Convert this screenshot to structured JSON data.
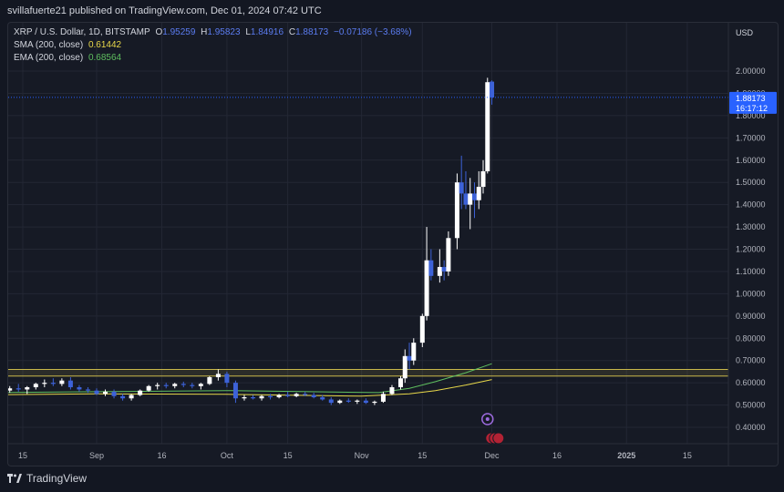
{
  "header": {
    "publish_line": "svillafuerte21 published on TradingView.com, Dec 01, 2024 07:42 UTC"
  },
  "legend": {
    "symbol": "XRP / U.S. Dollar, 1D, BITSTAMP",
    "o_label": "O",
    "o_value": "1.95259",
    "h_label": "H",
    "h_value": "1.95823",
    "l_label": "L",
    "l_value": "1.84916",
    "c_label": "C",
    "c_value": "1.88173",
    "change": "−0.07186 (−3.68%)",
    "sma_label": "SMA (200, close)",
    "sma_value": "0.61442",
    "ema_label": "EMA (200, close)",
    "ema_value": "0.68564"
  },
  "footer": {
    "brand": "TradingView"
  },
  "colors": {
    "up": "#ffffff",
    "down": "#3d62d8",
    "sma": "#e8d84a",
    "ema": "#5fbf5f",
    "zone": "#c9b84a",
    "price_tag": "#2962ff"
  },
  "icons": [
    "tradingview-logo-icon",
    "event-star-icon",
    "us-flag-icon"
  ],
  "chart_data": {
    "type": "candlestick",
    "title": "XRP / U.S. Dollar, 1D, BITSTAMP",
    "currency": "USD",
    "ylim": [
      0.34,
      2.1
    ],
    "yticks": [
      0.4,
      0.5,
      0.6,
      0.7,
      0.8,
      0.9,
      1.0,
      1.1,
      1.2,
      1.3,
      1.4,
      1.5,
      1.6,
      1.7,
      1.8,
      1.9,
      2.0
    ],
    "ytick_labels": [
      "0.40000",
      "0.50000",
      "0.60000",
      "0.70000",
      "0.80000",
      "0.90000",
      "1.00000",
      "1.10000",
      "1.20000",
      "1.30000",
      "1.40000",
      "1.50000",
      "1.60000",
      "1.70000",
      "1.80000",
      "1.90000",
      "2.00000"
    ],
    "xtick_labels": [
      {
        "label": "15",
        "date": "2024-08-15"
      },
      {
        "label": "Sep",
        "date": "2024-09-01"
      },
      {
        "label": "16",
        "date": "2024-09-16"
      },
      {
        "label": "Oct",
        "date": "2024-10-01"
      },
      {
        "label": "15",
        "date": "2024-10-15"
      },
      {
        "label": "Nov",
        "date": "2024-11-01"
      },
      {
        "label": "15",
        "date": "2024-11-15"
      },
      {
        "label": "Dec",
        "date": "2024-12-01"
      },
      {
        "label": "16",
        "date": "2024-12-16"
      },
      {
        "label": "2025",
        "date": "2025-01-01"
      },
      {
        "label": "15",
        "date": "2025-01-15"
      }
    ],
    "last_price": "1.88173",
    "countdown": "16:17:12",
    "grid": true,
    "horizontal_zone": [
      0.63,
      0.66
    ],
    "candles": [
      {
        "date": "2024-08-10",
        "o": 0.555,
        "h": 0.575,
        "l": 0.545,
        "c": 0.565
      },
      {
        "date": "2024-08-12",
        "o": 0.565,
        "h": 0.585,
        "l": 0.555,
        "c": 0.575
      },
      {
        "date": "2024-08-14",
        "o": 0.575,
        "h": 0.595,
        "l": 0.56,
        "c": 0.57
      },
      {
        "date": "2024-08-16",
        "o": 0.57,
        "h": 0.585,
        "l": 0.55,
        "c": 0.58
      },
      {
        "date": "2024-08-18",
        "o": 0.58,
        "h": 0.6,
        "l": 0.57,
        "c": 0.595
      },
      {
        "date": "2024-08-20",
        "o": 0.595,
        "h": 0.615,
        "l": 0.58,
        "c": 0.6
      },
      {
        "date": "2024-08-22",
        "o": 0.6,
        "h": 0.62,
        "l": 0.585,
        "c": 0.595
      },
      {
        "date": "2024-08-24",
        "o": 0.595,
        "h": 0.62,
        "l": 0.585,
        "c": 0.61
      },
      {
        "date": "2024-08-26",
        "o": 0.61,
        "h": 0.625,
        "l": 0.57,
        "c": 0.58
      },
      {
        "date": "2024-08-28",
        "o": 0.58,
        "h": 0.59,
        "l": 0.56,
        "c": 0.57
      },
      {
        "date": "2024-08-30",
        "o": 0.57,
        "h": 0.58,
        "l": 0.555,
        "c": 0.565
      },
      {
        "date": "2024-09-01",
        "o": 0.565,
        "h": 0.575,
        "l": 0.545,
        "c": 0.55
      },
      {
        "date": "2024-09-03",
        "o": 0.55,
        "h": 0.57,
        "l": 0.54,
        "c": 0.56
      },
      {
        "date": "2024-09-05",
        "o": 0.56,
        "h": 0.57,
        "l": 0.53,
        "c": 0.54
      },
      {
        "date": "2024-09-07",
        "o": 0.54,
        "h": 0.55,
        "l": 0.52,
        "c": 0.53
      },
      {
        "date": "2024-09-09",
        "o": 0.53,
        "h": 0.55,
        "l": 0.52,
        "c": 0.545
      },
      {
        "date": "2024-09-11",
        "o": 0.545,
        "h": 0.57,
        "l": 0.54,
        "c": 0.565
      },
      {
        "date": "2024-09-13",
        "o": 0.565,
        "h": 0.59,
        "l": 0.56,
        "c": 0.585
      },
      {
        "date": "2024-09-15",
        "o": 0.585,
        "h": 0.6,
        "l": 0.57,
        "c": 0.59
      },
      {
        "date": "2024-09-17",
        "o": 0.59,
        "h": 0.6,
        "l": 0.575,
        "c": 0.585
      },
      {
        "date": "2024-09-19",
        "o": 0.585,
        "h": 0.6,
        "l": 0.575,
        "c": 0.595
      },
      {
        "date": "2024-09-21",
        "o": 0.595,
        "h": 0.605,
        "l": 0.58,
        "c": 0.59
      },
      {
        "date": "2024-09-23",
        "o": 0.59,
        "h": 0.6,
        "l": 0.575,
        "c": 0.585
      },
      {
        "date": "2024-09-25",
        "o": 0.585,
        "h": 0.6,
        "l": 0.57,
        "c": 0.595
      },
      {
        "date": "2024-09-27",
        "o": 0.595,
        "h": 0.63,
        "l": 0.59,
        "c": 0.625
      },
      {
        "date": "2024-09-29",
        "o": 0.625,
        "h": 0.66,
        "l": 0.61,
        "c": 0.64
      },
      {
        "date": "2024-10-01",
        "o": 0.64,
        "h": 0.65,
        "l": 0.58,
        "c": 0.6
      },
      {
        "date": "2024-10-03",
        "o": 0.6,
        "h": 0.61,
        "l": 0.51,
        "c": 0.53
      },
      {
        "date": "2024-10-05",
        "o": 0.53,
        "h": 0.545,
        "l": 0.52,
        "c": 0.535
      },
      {
        "date": "2024-10-07",
        "o": 0.535,
        "h": 0.545,
        "l": 0.525,
        "c": 0.53
      },
      {
        "date": "2024-10-09",
        "o": 0.53,
        "h": 0.545,
        "l": 0.52,
        "c": 0.54
      },
      {
        "date": "2024-10-11",
        "o": 0.54,
        "h": 0.55,
        "l": 0.525,
        "c": 0.535
      },
      {
        "date": "2024-10-13",
        "o": 0.535,
        "h": 0.55,
        "l": 0.53,
        "c": 0.545
      },
      {
        "date": "2024-10-15",
        "o": 0.545,
        "h": 0.56,
        "l": 0.535,
        "c": 0.54
      },
      {
        "date": "2024-10-17",
        "o": 0.54,
        "h": 0.555,
        "l": 0.535,
        "c": 0.55
      },
      {
        "date": "2024-10-19",
        "o": 0.55,
        "h": 0.56,
        "l": 0.54,
        "c": 0.545
      },
      {
        "date": "2024-10-21",
        "o": 0.545,
        "h": 0.555,
        "l": 0.53,
        "c": 0.535
      },
      {
        "date": "2024-10-23",
        "o": 0.535,
        "h": 0.545,
        "l": 0.52,
        "c": 0.525
      },
      {
        "date": "2024-10-25",
        "o": 0.525,
        "h": 0.535,
        "l": 0.5,
        "c": 0.51
      },
      {
        "date": "2024-10-27",
        "o": 0.51,
        "h": 0.525,
        "l": 0.505,
        "c": 0.52
      },
      {
        "date": "2024-10-29",
        "o": 0.52,
        "h": 0.53,
        "l": 0.51,
        "c": 0.515
      },
      {
        "date": "2024-10-31",
        "o": 0.515,
        "h": 0.525,
        "l": 0.505,
        "c": 0.52
      },
      {
        "date": "2024-11-02",
        "o": 0.52,
        "h": 0.53,
        "l": 0.505,
        "c": 0.51
      },
      {
        "date": "2024-11-04",
        "o": 0.51,
        "h": 0.52,
        "l": 0.5,
        "c": 0.515
      },
      {
        "date": "2024-11-06",
        "o": 0.515,
        "h": 0.56,
        "l": 0.51,
        "c": 0.55
      },
      {
        "date": "2024-11-08",
        "o": 0.55,
        "h": 0.59,
        "l": 0.545,
        "c": 0.58
      },
      {
        "date": "2024-11-10",
        "o": 0.58,
        "h": 0.63,
        "l": 0.57,
        "c": 0.62
      },
      {
        "date": "2024-11-11",
        "o": 0.62,
        "h": 0.75,
        "l": 0.6,
        "c": 0.72
      },
      {
        "date": "2024-11-12",
        "o": 0.72,
        "h": 0.78,
        "l": 0.66,
        "c": 0.7
      },
      {
        "date": "2024-11-13",
        "o": 0.7,
        "h": 0.8,
        "l": 0.68,
        "c": 0.78
      },
      {
        "date": "2024-11-15",
        "o": 0.78,
        "h": 0.91,
        "l": 0.76,
        "c": 0.9
      },
      {
        "date": "2024-11-16",
        "o": 0.9,
        "h": 1.3,
        "l": 0.88,
        "c": 1.15
      },
      {
        "date": "2024-11-17",
        "o": 1.15,
        "h": 1.2,
        "l": 1.06,
        "c": 1.08
      },
      {
        "date": "2024-11-19",
        "o": 1.08,
        "h": 1.2,
        "l": 1.05,
        "c": 1.12
      },
      {
        "date": "2024-11-20",
        "o": 1.12,
        "h": 1.15,
        "l": 1.06,
        "c": 1.1
      },
      {
        "date": "2024-11-21",
        "o": 1.1,
        "h": 1.28,
        "l": 1.08,
        "c": 1.25
      },
      {
        "date": "2024-11-23",
        "o": 1.25,
        "h": 1.54,
        "l": 1.2,
        "c": 1.5
      },
      {
        "date": "2024-11-24",
        "o": 1.5,
        "h": 1.62,
        "l": 1.38,
        "c": 1.45
      },
      {
        "date": "2024-11-25",
        "o": 1.45,
        "h": 1.55,
        "l": 1.38,
        "c": 1.4
      },
      {
        "date": "2024-11-26",
        "o": 1.4,
        "h": 1.52,
        "l": 1.29,
        "c": 1.45
      },
      {
        "date": "2024-11-27",
        "o": 1.45,
        "h": 1.5,
        "l": 1.34,
        "c": 1.42
      },
      {
        "date": "2024-11-28",
        "o": 1.42,
        "h": 1.55,
        "l": 1.38,
        "c": 1.48
      },
      {
        "date": "2024-11-29",
        "o": 1.48,
        "h": 1.6,
        "l": 1.45,
        "c": 1.55
      },
      {
        "date": "2024-11-30",
        "o": 1.55,
        "h": 1.97,
        "l": 1.54,
        "c": 1.95
      },
      {
        "date": "2024-12-01",
        "o": 1.95259,
        "h": 1.95823,
        "l": 1.84916,
        "c": 1.88173
      }
    ],
    "series": [
      {
        "name": "SMA (200, close)",
        "points": [
          {
            "date": "2024-08-01",
            "v": 0.545
          },
          {
            "date": "2024-09-01",
            "v": 0.55
          },
          {
            "date": "2024-10-01",
            "v": 0.548
          },
          {
            "date": "2024-11-01",
            "v": 0.54
          },
          {
            "date": "2024-11-12",
            "v": 0.55
          },
          {
            "date": "2024-11-18",
            "v": 0.565
          },
          {
            "date": "2024-11-25",
            "v": 0.59
          },
          {
            "date": "2024-12-01",
            "v": 0.61442
          }
        ]
      },
      {
        "name": "EMA (200, close)",
        "points": [
          {
            "date": "2024-08-01",
            "v": 0.555
          },
          {
            "date": "2024-09-01",
            "v": 0.56
          },
          {
            "date": "2024-10-01",
            "v": 0.565
          },
          {
            "date": "2024-10-20",
            "v": 0.56
          },
          {
            "date": "2024-11-05",
            "v": 0.556
          },
          {
            "date": "2024-11-12",
            "v": 0.575
          },
          {
            "date": "2024-11-18",
            "v": 0.605
          },
          {
            "date": "2024-11-25",
            "v": 0.645
          },
          {
            "date": "2024-12-01",
            "v": 0.68564
          }
        ]
      }
    ]
  }
}
